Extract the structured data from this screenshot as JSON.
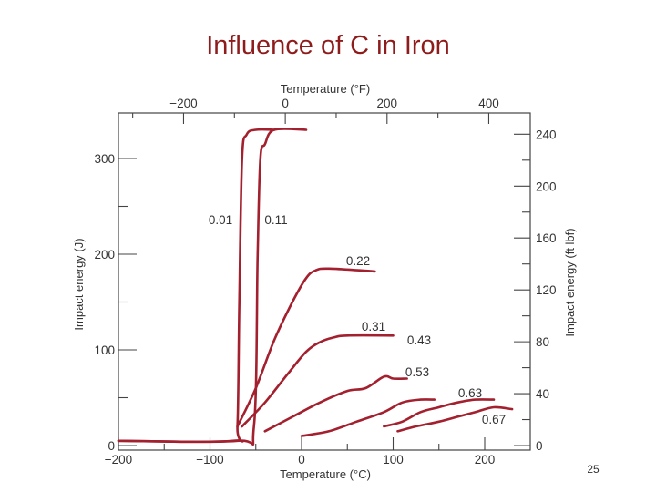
{
  "slide": {
    "title": "Influence of C in Iron",
    "page_number": "25"
  },
  "colors": {
    "title": "#8e1c1c",
    "curve": "#a3202e",
    "axis": "#444444"
  },
  "chart_data": {
    "type": "line",
    "xlabel": "Temperature (°C)",
    "ylabel": "Impact energy (J)",
    "x2label": "Temperature (°F)",
    "y2label": "Impact energy (ft lbf)",
    "xlim": [
      -200,
      250
    ],
    "ylim": [
      0,
      330
    ],
    "x_ticks": [
      "−200",
      "−100",
      "0",
      "100",
      "200"
    ],
    "y_ticks": [
      "0",
      "100",
      "200",
      "300"
    ],
    "x2_ticks": [
      "−200",
      "0",
      "200",
      "400"
    ],
    "y2_ticks": [
      "0",
      "40",
      "80",
      "120",
      "160",
      "200",
      "240"
    ],
    "series": [
      {
        "name": "0.01",
        "x": [
          -200,
          -75,
          -70,
          -68,
          -65,
          -60,
          -50,
          -30
        ],
        "y": [
          5,
          5,
          20,
          150,
          300,
          325,
          330,
          330
        ]
      },
      {
        "name": "0.11",
        "x": [
          -200,
          -70,
          -52,
          -48,
          -45,
          -40,
          -30,
          5
        ],
        "y": [
          5,
          5,
          20,
          200,
          300,
          315,
          330,
          330
        ]
      },
      {
        "name": "0.22",
        "x": [
          -70,
          -50,
          -30,
          -10,
          5,
          15,
          30,
          80
        ],
        "y": [
          20,
          60,
          110,
          150,
          175,
          183,
          185,
          182
        ]
      },
      {
        "name": "0.31",
        "x": [
          -65,
          -40,
          -15,
          5,
          20,
          35,
          50,
          100
        ],
        "y": [
          20,
          45,
          75,
          98,
          108,
          113,
          115,
          115
        ]
      },
      {
        "name": "0.43",
        "x": [
          -40,
          -10,
          20,
          50,
          70,
          90,
          100,
          115
        ],
        "y": [
          15,
          30,
          45,
          57,
          60,
          72,
          70,
          70
        ]
      },
      {
        "name": "0.53",
        "x": [
          0,
          30,
          60,
          90,
          110,
          130,
          145
        ],
        "y": [
          10,
          15,
          25,
          35,
          45,
          48,
          48
        ]
      },
      {
        "name": "0.63",
        "x": [
          90,
          110,
          130,
          150,
          170,
          190,
          210
        ],
        "y": [
          20,
          25,
          35,
          40,
          45,
          48,
          48
        ]
      },
      {
        "name": "0.67",
        "x": [
          105,
          125,
          150,
          170,
          190,
          210,
          230
        ],
        "y": [
          15,
          20,
          25,
          30,
          35,
          40,
          38
        ]
      }
    ]
  }
}
